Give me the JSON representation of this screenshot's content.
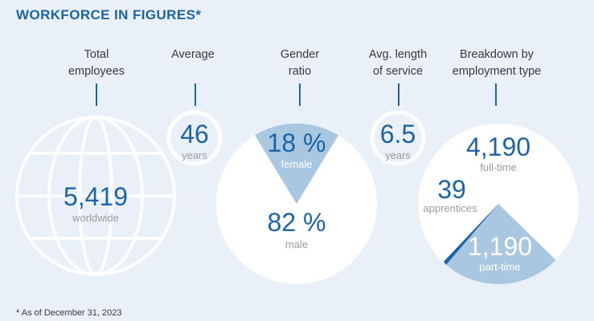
{
  "title": "WORKFORCE IN FIGURES*",
  "headers": {
    "total_employees": "Total\nemployees",
    "average": "Average",
    "gender_ratio": "Gender\nratio",
    "avg_service": "Avg. length\nof service",
    "breakdown": "Breakdown by\nemployment type"
  },
  "total": {
    "value": "5,419",
    "label": "worldwide"
  },
  "age": {
    "value": "46",
    "label": "years"
  },
  "gender": {
    "female_value": "18 %",
    "female_label": "female",
    "male_value": "82 %",
    "male_label": "male",
    "female_share": 0.18
  },
  "service": {
    "value": "6.5",
    "label": "years"
  },
  "employment": {
    "fulltime_value": "4,190",
    "fulltime_label": "full-time",
    "apprentices_value": "39",
    "apprentices_label": "apprentices",
    "parttime_value": "1,190",
    "parttime_label": "part-time"
  },
  "footnote": "* As of December 31, 2023",
  "colors": {
    "accent": "#1d64a6",
    "segment": "#a9c7e0",
    "background": "#e9f0f7"
  }
}
